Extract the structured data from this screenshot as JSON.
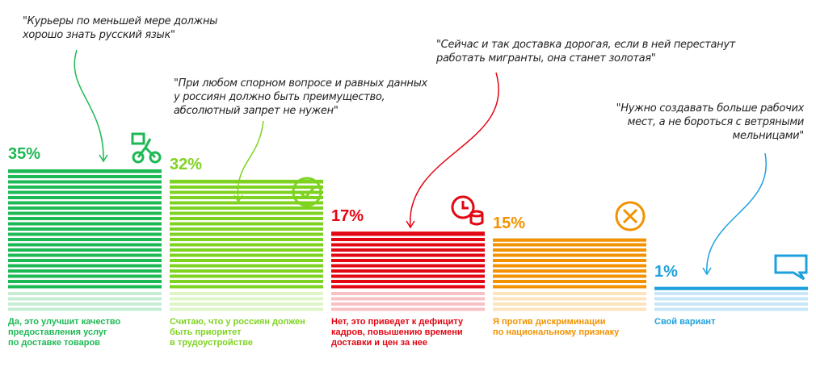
{
  "chart_data": {
    "type": "bar",
    "categories": [
      "Да, это улучшит качество\nпредоставления услуг\nпо доставке товаров",
      "Считаю, что у россиян должен\nбыть приоритет\nв трудоустройстве",
      "Нет, это приведет к дефициту\nкадров, повышению времени\nдоставки и цен за нее",
      "Я против дискриминации\nпо национальному признаку",
      "Свой вариант"
    ],
    "values": [
      35,
      32,
      17,
      15,
      1
    ],
    "value_labels": [
      "35%",
      "32%",
      "17%",
      "15%",
      "1%"
    ],
    "colors": [
      "#1db954",
      "#7ed321",
      "#e30613",
      "#f39200",
      "#1ea1dc"
    ],
    "annotations": [
      {
        "text": "\"Курьеры по меньшей мере должны\nхорошо знать русский язык\"",
        "color": "#1db954"
      },
      {
        "text": "\"При любом спорном вопросе и равных данных\nу россиян должно быть преимущество,\nабсолютный запрет не нужен\"",
        "color": "#7ed321"
      },
      {
        "text": "\"Сейчас и так доставка дорогая, если в ней перестанут\nработать мигранты, она станет золотая\"",
        "color": "#e30613"
      },
      {
        "text": "\"Нужно создавать больше рабочих\nмест, а не бороться с ветряными\nмельницами\"",
        "color": "#1ea1dc"
      }
    ]
  }
}
